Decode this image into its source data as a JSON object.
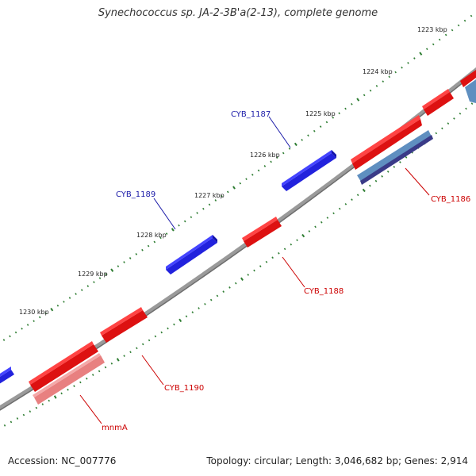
{
  "title": "Synechococcus sp. JA-2-3B'a(2-13), complete genome",
  "footer": {
    "accession": "Accession: NC_007776",
    "summary": "Topology: circular; Length: 3,046,682 bp; Genes: 2,914"
  },
  "colors": {
    "backbone": "#808080",
    "forward_gene": "#0000ee",
    "reverse_gene": "#ee0000",
    "forward_label": "#1a1aa8",
    "reverse_label": "#cc0000",
    "tick": "#2e7d32"
  },
  "kbp_labels": [
    "1223 kbp",
    "1224 kbp",
    "1225 kbp",
    "1226 kbp",
    "1227 kbp",
    "1228 kbp",
    "1229 kbp",
    "1230 kbp"
  ],
  "genes": [
    {
      "id": "CYB_1187",
      "label": "CYB_1187",
      "strand": "forward"
    },
    {
      "id": "CYB_1189",
      "label": "CYB_1189",
      "strand": "forward"
    },
    {
      "id": "CYB_1186",
      "label": "CYB_1186",
      "strand": "reverse"
    },
    {
      "id": "CYB_1188",
      "label": "CYB_1188",
      "strand": "reverse"
    },
    {
      "id": "CYB_1190",
      "label": "CYB_1190",
      "strand": "reverse"
    },
    {
      "id": "mnmA",
      "label": "mnmA",
      "strand": "reverse"
    }
  ]
}
